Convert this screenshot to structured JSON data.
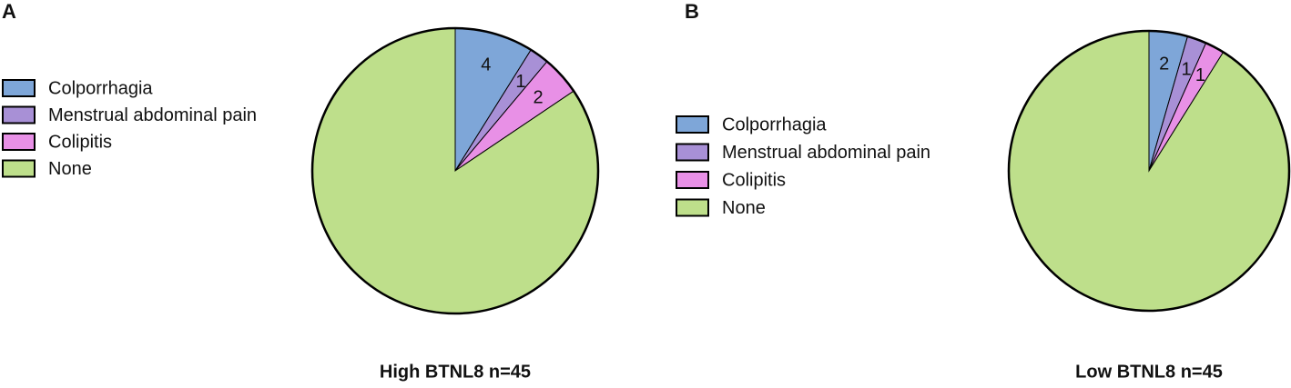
{
  "chart_data": [
    {
      "type": "pie",
      "panel": "A",
      "title": "High BTNL8 n=45",
      "categories": [
        "Colporrhagia",
        "Menstrual abdominal pain",
        "Colipitis",
        "None"
      ],
      "values": [
        4,
        1,
        2,
        38
      ],
      "value_labels": [
        "4",
        "1",
        "2",
        null
      ],
      "colors": [
        "#7ea6d8",
        "#a890d6",
        "#e890e6",
        "#bedf8b"
      ]
    },
    {
      "type": "pie",
      "panel": "B",
      "title": "Low BTNL8 n=45",
      "categories": [
        "Colporrhagia",
        "Menstrual abdominal pain",
        "Colipitis",
        "None"
      ],
      "values": [
        2,
        1,
        1,
        41
      ],
      "value_labels": [
        "2",
        "1",
        "1",
        null
      ],
      "colors": [
        "#7ea6d8",
        "#a890d6",
        "#e890e6",
        "#bedf8b"
      ]
    }
  ]
}
